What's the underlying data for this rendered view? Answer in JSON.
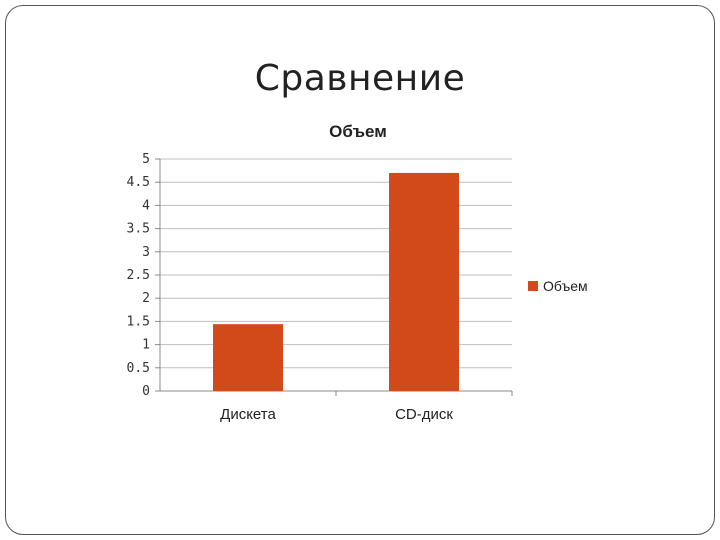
{
  "slide": {
    "title": "Сравнение"
  },
  "colors": {
    "bar": "#D24A1A",
    "grid": "#BFBFBF",
    "axis": "#888888",
    "frame": "#555555"
  },
  "chart_data": {
    "type": "bar",
    "title": "Объем",
    "categories": [
      "Дискета",
      "CD-диск"
    ],
    "series": [
      {
        "name": "Объем",
        "values": [
          1.44,
          4.7
        ]
      }
    ],
    "ylim": [
      0,
      5
    ],
    "yticks": [
      0,
      0.5,
      1,
      1.5,
      2,
      2.5,
      3,
      3.5,
      4,
      4.5,
      5
    ],
    "ytick_labels": [
      "0",
      "0.5",
      "1",
      "1.5",
      "2",
      "2.5",
      "3",
      "3.5",
      "4",
      "4.5",
      "5"
    ],
    "grid": true,
    "legend": "right"
  }
}
